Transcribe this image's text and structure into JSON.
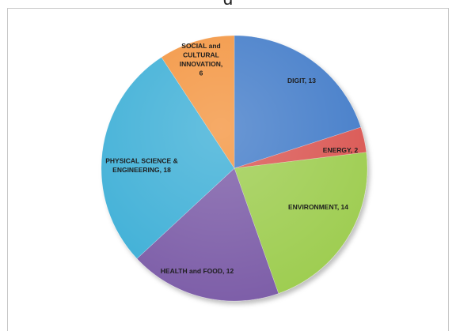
{
  "top_text": "g",
  "chart_data": {
    "type": "pie",
    "title": "",
    "slices": [
      {
        "label": "DIGIT",
        "value": 13,
        "color": "#3f7ac8"
      },
      {
        "label": "ENERGY",
        "value": 2,
        "color": "#d9534f"
      },
      {
        "label": "ENVIRONMENT",
        "value": 14,
        "color": "#9ccc4e"
      },
      {
        "label": "HEALTH and FOOD",
        "value": 12,
        "color": "#7a5aa6"
      },
      {
        "label": "PHYSICAL SCIENCE & ENGINEERING",
        "value": 18,
        "color": "#3aaed6"
      },
      {
        "label": "SOCIAL and CULTURAL INNOVATION",
        "value": 6,
        "color": "#f3933d"
      }
    ],
    "data_labels": [
      [
        "DIGIT, 13"
      ],
      [
        "ENERGY, 2"
      ],
      [
        "ENVIRONMENT, 14"
      ],
      [
        "HEALTH and FOOD, 12"
      ],
      [
        "PHYSICAL SCIENCE &",
        "ENGINEERING, 18"
      ],
      [
        "SOCIAL and",
        "CULTURAL",
        "INNOVATION,",
        "6"
      ]
    ],
    "legend": false
  }
}
